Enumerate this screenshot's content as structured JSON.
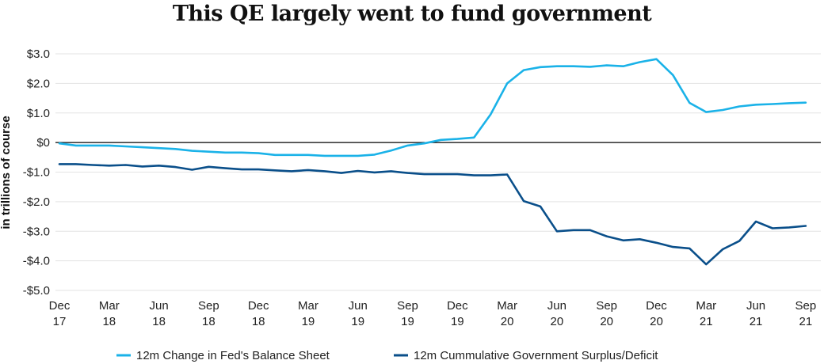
{
  "title": "This QE largely went to fund government",
  "colors": {
    "fed": "#1ab2e8",
    "gov": "#0a4f8a",
    "zero_line": "#000000",
    "grid": "#e3e3e3"
  },
  "chart_data": {
    "type": "line",
    "title": "This QE largely went to fund government",
    "ylabel": "in trillions of course",
    "ylim": [
      -5.0,
      3.0
    ],
    "y_ticks": [
      3.0,
      2.0,
      1.0,
      0,
      -1.0,
      -2.0,
      -3.0,
      -4.0,
      -5.0
    ],
    "y_tick_labels": [
      "$3.0",
      "$2.0",
      "$1.0",
      "$0",
      "-$1.0",
      "-$2.0",
      "-$3.0",
      "-$4.0",
      "-$5.0"
    ],
    "x_tick_labels": [
      [
        "Dec",
        "17"
      ],
      [
        "Mar",
        "18"
      ],
      [
        "Jun",
        "18"
      ],
      [
        "Sep",
        "18"
      ],
      [
        "Dec",
        "18"
      ],
      [
        "Mar",
        "19"
      ],
      [
        "Jun",
        "19"
      ],
      [
        "Sep",
        "19"
      ],
      [
        "Dec",
        "19"
      ],
      [
        "Mar",
        "20"
      ],
      [
        "Jun",
        "20"
      ],
      [
        "Sep",
        "20"
      ],
      [
        "Dec",
        "20"
      ],
      [
        "Mar",
        "21"
      ],
      [
        "Jun",
        "21"
      ],
      [
        "Sep",
        "21"
      ]
    ],
    "x": [
      "2017-12",
      "2018-01",
      "2018-02",
      "2018-03",
      "2018-04",
      "2018-05",
      "2018-06",
      "2018-07",
      "2018-08",
      "2018-09",
      "2018-10",
      "2018-11",
      "2018-12",
      "2019-01",
      "2019-02",
      "2019-03",
      "2019-04",
      "2019-05",
      "2019-06",
      "2019-07",
      "2019-08",
      "2019-09",
      "2019-10",
      "2019-11",
      "2019-12",
      "2020-01",
      "2020-02",
      "2020-03",
      "2020-04",
      "2020-05",
      "2020-06",
      "2020-07",
      "2020-08",
      "2020-09",
      "2020-10",
      "2020-11",
      "2020-12",
      "2021-01",
      "2021-02",
      "2021-03",
      "2021-04",
      "2021-05",
      "2021-06",
      "2021-07",
      "2021-08",
      "2021-09"
    ],
    "grid": true,
    "legend_position": "bottom",
    "series": [
      {
        "name": "12m Change in Fed's Balance Sheet",
        "values": [
          -0.03,
          -0.1,
          -0.1,
          -0.1,
          -0.13,
          -0.16,
          -0.19,
          -0.22,
          -0.28,
          -0.31,
          -0.34,
          -0.34,
          -0.36,
          -0.42,
          -0.42,
          -0.42,
          -0.45,
          -0.45,
          -0.45,
          -0.41,
          -0.27,
          -0.1,
          -0.03,
          0.09,
          0.12,
          0.17,
          0.95,
          2.0,
          2.45,
          2.55,
          2.58,
          2.58,
          2.56,
          2.61,
          2.58,
          2.72,
          2.82,
          2.28,
          1.34,
          1.03,
          1.1,
          1.22,
          1.28,
          1.3,
          1.33,
          1.35
        ]
      },
      {
        "name": "12m Cummulative Government Surplus/Deficit",
        "values": [
          -0.73,
          -0.73,
          -0.76,
          -0.78,
          -0.76,
          -0.81,
          -0.78,
          -0.83,
          -0.92,
          -0.82,
          -0.87,
          -0.91,
          -0.91,
          -0.94,
          -0.97,
          -0.93,
          -0.97,
          -1.03,
          -0.96,
          -1.01,
          -0.97,
          -1.03,
          -1.07,
          -1.07,
          -1.07,
          -1.11,
          -1.11,
          -1.08,
          -1.98,
          -2.16,
          -3.0,
          -2.96,
          -2.96,
          -3.17,
          -3.31,
          -3.27,
          -3.39,
          -3.53,
          -3.58,
          -4.12,
          -3.61,
          -3.33,
          -2.67,
          -2.9,
          -2.87,
          -2.82
        ]
      }
    ]
  }
}
